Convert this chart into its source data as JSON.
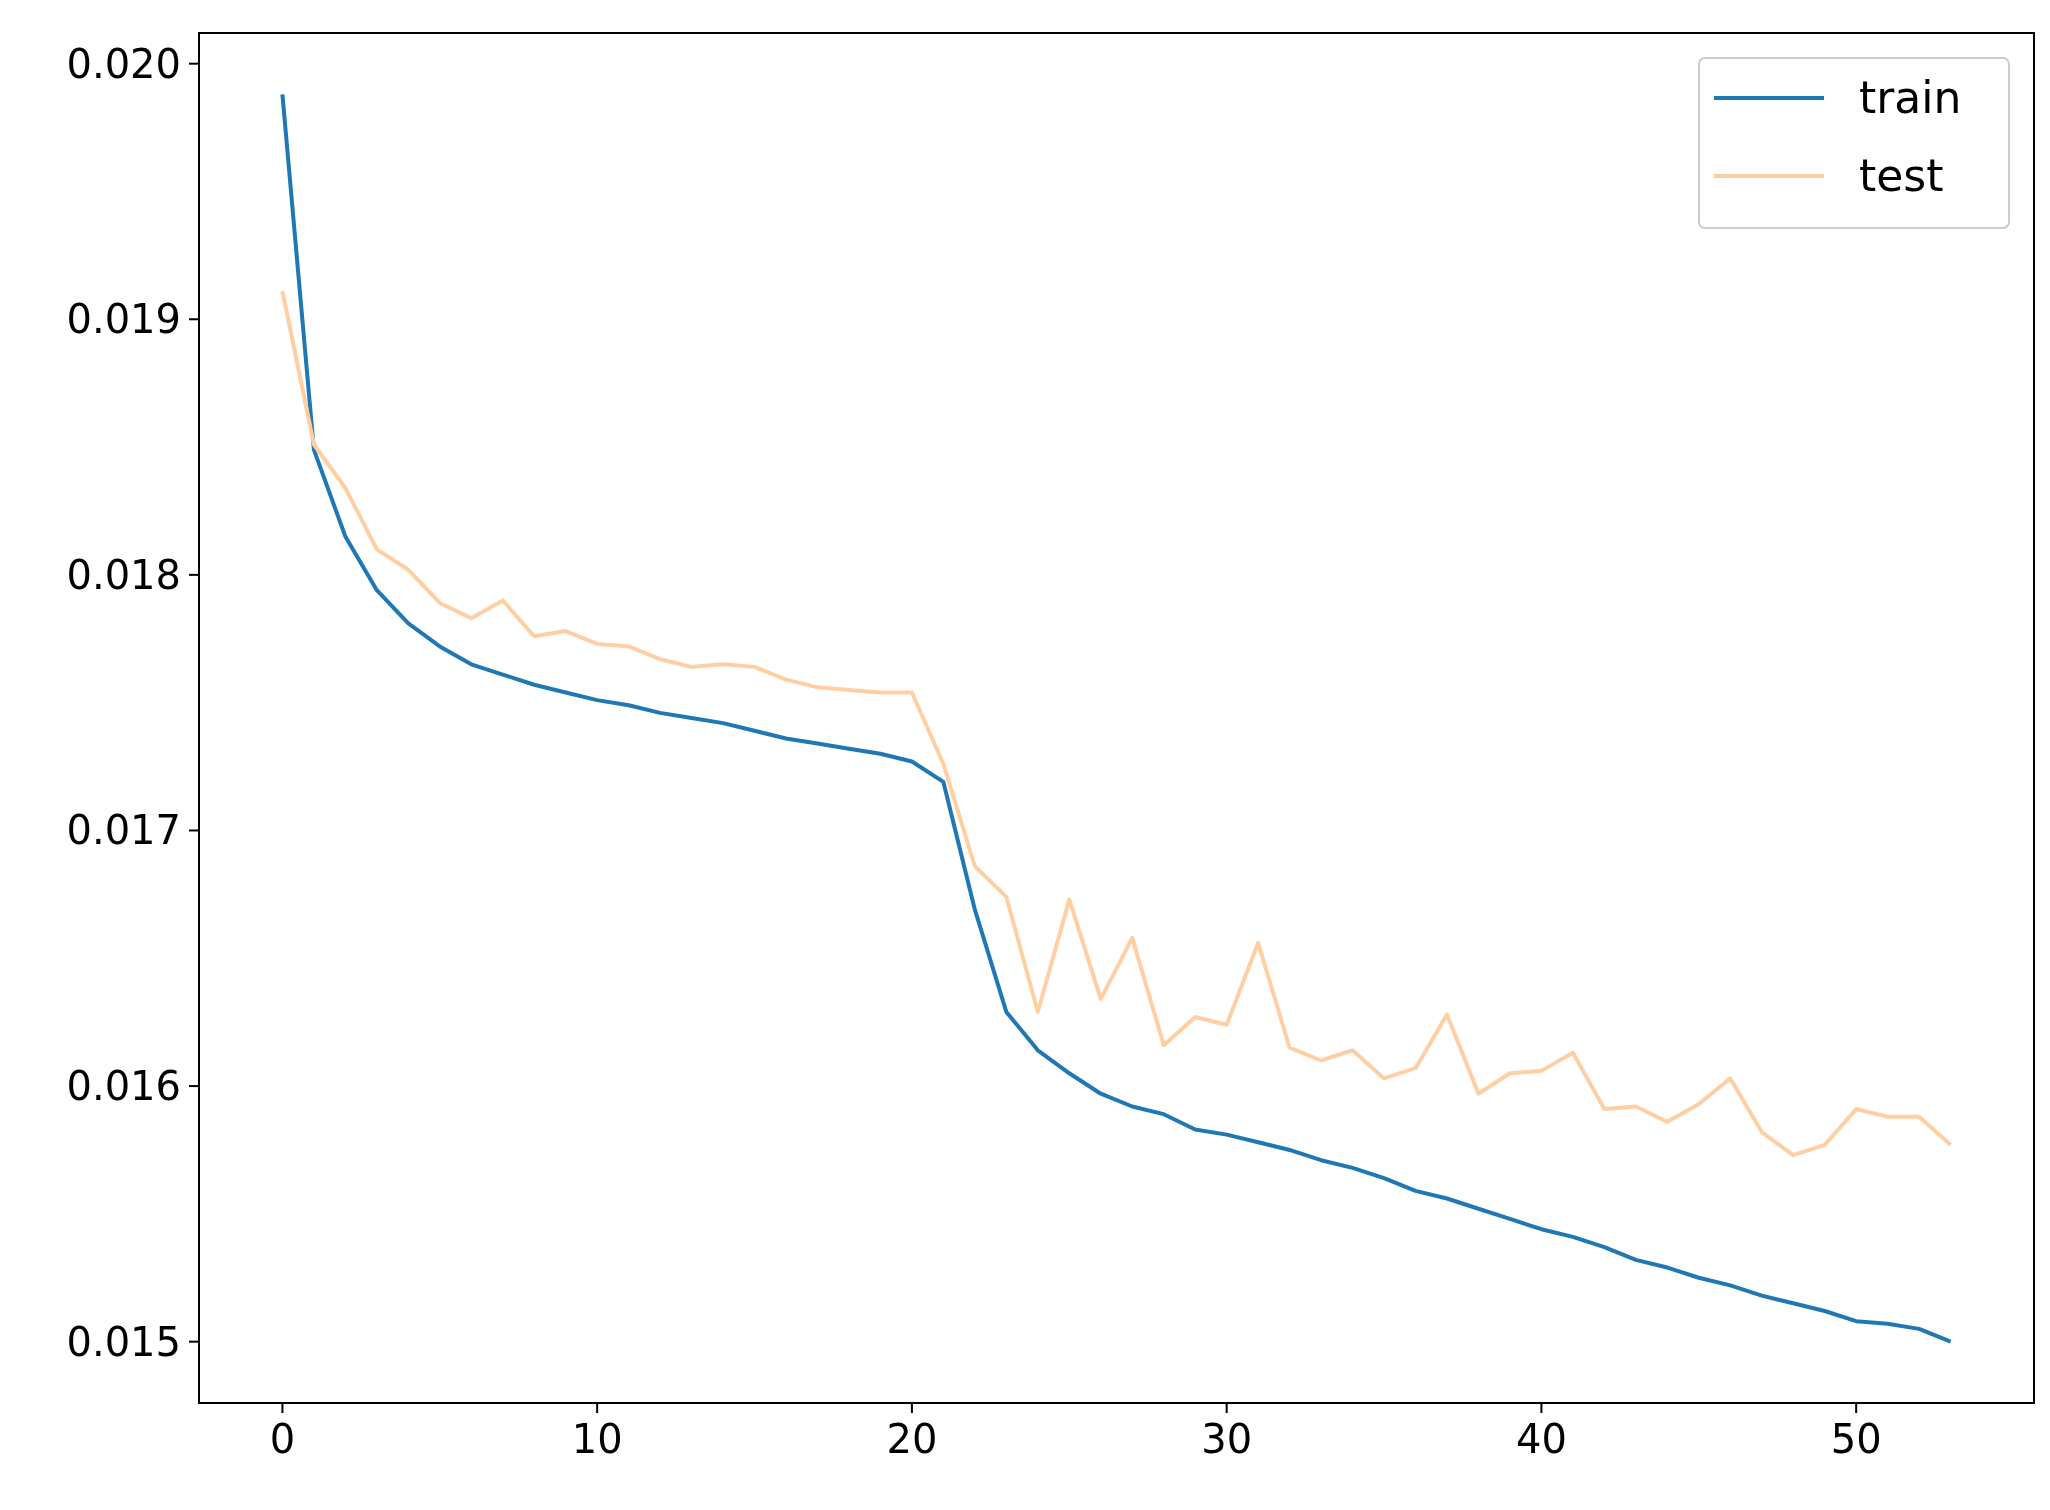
{
  "chart_data": {
    "type": "line",
    "x": [
      0,
      1,
      2,
      3,
      4,
      5,
      6,
      7,
      8,
      9,
      10,
      11,
      12,
      13,
      14,
      15,
      16,
      17,
      18,
      19,
      20,
      21,
      22,
      23,
      24,
      25,
      26,
      27,
      28,
      29,
      30,
      31,
      32,
      33,
      34,
      35,
      36,
      37,
      38,
      39,
      40,
      41,
      42,
      43,
      44,
      45,
      46,
      47,
      48,
      49,
      50,
      51,
      52,
      53
    ],
    "series": [
      {
        "name": "train",
        "color": "#1f77b4",
        "values": [
          0.01988,
          0.01849,
          0.01815,
          0.01794,
          0.01781,
          0.01772,
          0.01765,
          0.01761,
          0.01757,
          0.01754,
          0.01751,
          0.01749,
          0.01746,
          0.01744,
          0.01742,
          0.01739,
          0.01736,
          0.01734,
          0.01732,
          0.0173,
          0.01727,
          0.01719,
          0.01669,
          0.01629,
          0.01614,
          0.01605,
          0.01597,
          0.01592,
          0.01589,
          0.01583,
          0.01581,
          0.01578,
          0.01575,
          0.01571,
          0.01568,
          0.01564,
          0.01559,
          0.01556,
          0.01552,
          0.01548,
          0.01544,
          0.01541,
          0.01537,
          0.01532,
          0.01529,
          0.01525,
          0.01522,
          0.01518,
          0.01515,
          0.01512,
          0.01508,
          0.01507,
          0.01505,
          0.015
        ]
      },
      {
        "name": "test",
        "color": "#ffcfa3",
        "values": [
          0.01911,
          0.01851,
          0.01834,
          0.0181,
          0.01802,
          0.01789,
          0.01783,
          0.0179,
          0.01776,
          0.01778,
          0.01773,
          0.01772,
          0.01767,
          0.01764,
          0.01765,
          0.01764,
          0.01759,
          0.01756,
          0.01755,
          0.01754,
          0.01754,
          0.01726,
          0.01686,
          0.01674,
          0.01629,
          0.01673,
          0.01634,
          0.01658,
          0.01616,
          0.01627,
          0.01624,
          0.01656,
          0.01615,
          0.0161,
          0.01614,
          0.01603,
          0.01607,
          0.01628,
          0.01597,
          0.01605,
          0.01606,
          0.01613,
          0.01591,
          0.01592,
          0.01586,
          0.01593,
          0.01603,
          0.01582,
          0.01573,
          0.01577,
          0.01591,
          0.01588,
          0.01588,
          0.01577
        ]
      }
    ],
    "xlim": [
      -2.65,
      55.65
    ],
    "ylim": [
      0.01476,
      0.02012
    ],
    "xticks": [
      0,
      10,
      20,
      30,
      40,
      50
    ],
    "yticks": [
      {
        "value": 0.015,
        "label": "0.015"
      },
      {
        "value": 0.016,
        "label": "0.016"
      },
      {
        "value": 0.017,
        "label": "0.017"
      },
      {
        "value": 0.018,
        "label": "0.018"
      },
      {
        "value": 0.019,
        "label": "0.019"
      },
      {
        "value": 0.02,
        "label": "0.020"
      }
    ],
    "legend": "top right",
    "grid": false
  }
}
